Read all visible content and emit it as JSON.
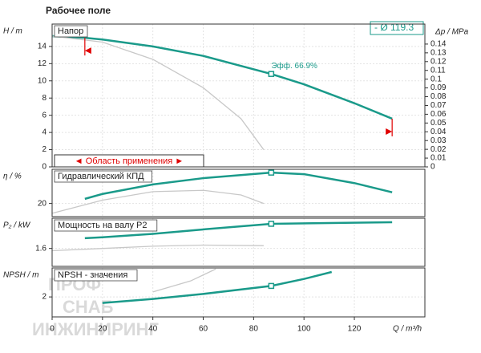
{
  "title": "Рабочее поле",
  "watermark": [
    "ПРОФ",
    "СНАБ",
    "ИНЖИНИРИНГ"
  ],
  "x_axis": {
    "xlim": [
      0,
      148
    ],
    "xticks": [
      0,
      20,
      40,
      60,
      80,
      100,
      120
    ],
    "label": "Q / m³/h"
  },
  "chart_data": [
    {
      "type": "line",
      "label": "Напор",
      "ylabel": "H / m",
      "y2label": "Δp / MPa",
      "ylim": [
        0,
        16.6
      ],
      "yticks": [
        0,
        2,
        4,
        6,
        8,
        10,
        12,
        14
      ],
      "y2lim": [
        0,
        0.1628
      ],
      "y2ticks": [
        0,
        0.01,
        0.02,
        0.03,
        0.04,
        0.05,
        0.06,
        0.07,
        0.08,
        0.09,
        0.1,
        0.11,
        0.12,
        0.13,
        0.14
      ],
      "legend": "top-right",
      "grid": true,
      "range": [
        13,
        135
      ],
      "range_label": "◄ Область применения ►",
      "range_color": "#e00000",
      "series": [
        {
          "name": "- Ø 119.3",
          "color": "#1a9a8a",
          "x": [
            0,
            13,
            20,
            40,
            60,
            87,
            100,
            120,
            135
          ],
          "values": [
            15.2,
            15.0,
            14.8,
            14.0,
            12.9,
            10.8,
            9.6,
            7.4,
            5.6
          ]
        },
        {
          "color": "#c8c8c8",
          "x": [
            0,
            20,
            40,
            60,
            75,
            84
          ],
          "values": [
            15.2,
            14.5,
            12.5,
            9.2,
            5.6,
            2
          ]
        }
      ],
      "duty_point": {
        "x": 87,
        "value": 10.8
      },
      "annotation": "Эфф.  66.9%"
    },
    {
      "type": "line",
      "label": "Гидравлический КПД",
      "ylabel": "η / %",
      "ylim": [
        0,
        72
      ],
      "yticks": [
        20
      ],
      "grid": true,
      "series": [
        {
          "color": "#1a9a8a",
          "x": [
            13,
            20,
            40,
            60,
            87,
            100,
            120,
            135
          ],
          "values": [
            27,
            34.5,
            49,
            58.5,
            66.9,
            64.6,
            51,
            37
          ]
        },
        {
          "color": "#c8c8c8",
          "x": [
            0,
            20,
            40,
            60,
            75,
            84
          ],
          "values": [
            5,
            25,
            38,
            40,
            33,
            20
          ]
        }
      ],
      "duty_point": {
        "x": 87,
        "value": 66.9
      }
    },
    {
      "type": "line",
      "label": "Мощность на валу P2",
      "ylabel": "P₂ / kW",
      "ylim": [
        0,
        4.3
      ],
      "yticks": [
        1.6
      ],
      "grid": true,
      "series": [
        {
          "color": "#1a9a8a",
          "x": [
            13,
            20,
            40,
            60,
            87,
            110,
            135
          ],
          "values": [
            2.52,
            2.6,
            2.9,
            3.3,
            3.8,
            3.87,
            3.94
          ]
        },
        {
          "color": "#c8c8c8",
          "x": [
            0,
            20,
            40,
            60,
            84
          ],
          "values": [
            1.4,
            1.6,
            1.8,
            1.9,
            1.85
          ]
        }
      ],
      "duty_point": {
        "x": 87,
        "value": 3.8
      }
    },
    {
      "type": "line",
      "label": "NPSH - значения",
      "ylabel": "NPSH / m",
      "ylim": [
        0,
        4.9
      ],
      "yticks": [
        2
      ],
      "grid": true,
      "series": [
        {
          "color": "#1a9a8a",
          "x": [
            20,
            40,
            60,
            87,
            100,
            111
          ],
          "values": [
            1.4,
            1.8,
            2.3,
            3.1,
            3.8,
            4.5
          ]
        },
        {
          "color": "#c8c8c8",
          "x": [
            40,
            55,
            65
          ],
          "values": [
            2.5,
            3.6,
            4.8
          ]
        }
      ],
      "duty_point": {
        "x": 87,
        "value": 3.1
      }
    }
  ]
}
